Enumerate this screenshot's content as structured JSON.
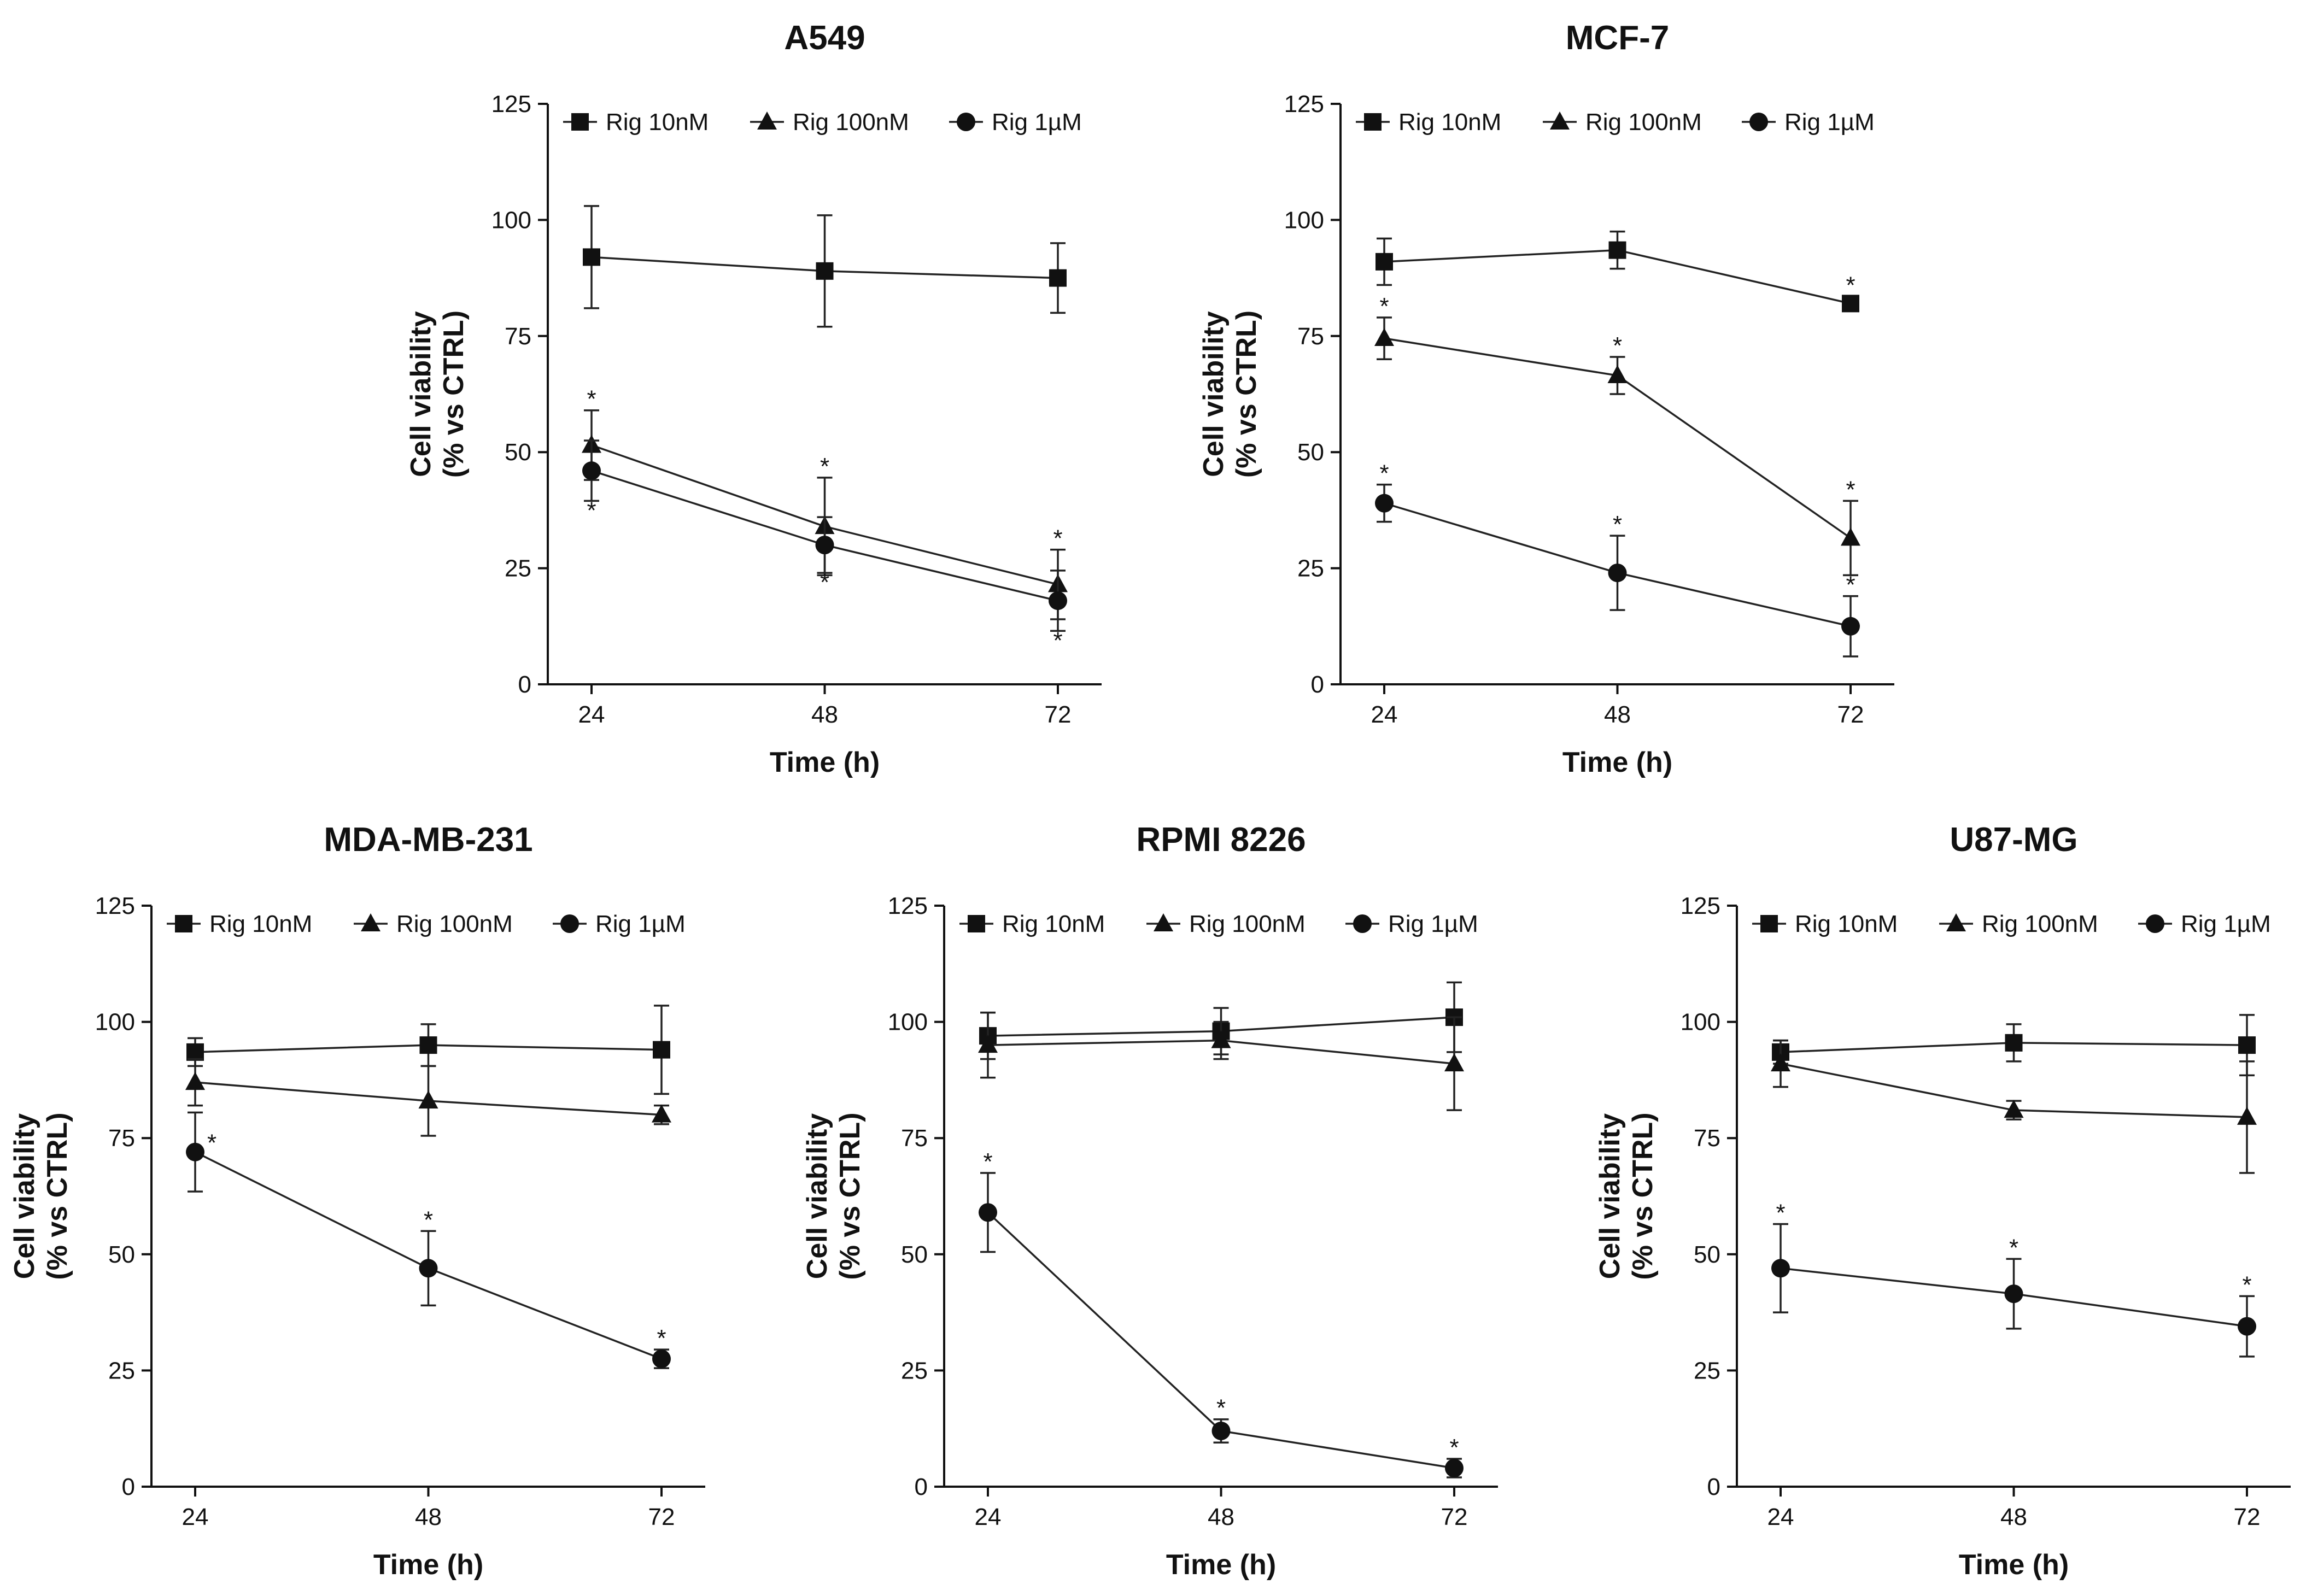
{
  "colors": {
    "ink": "#111111",
    "marker": "#111111",
    "line": "#222222"
  },
  "chart_data": [
    {
      "type": "line",
      "title": "A549",
      "xlabel": "Time (h)",
      "ylabel": [
        "Cell viability",
        "(% vs CTRL)"
      ],
      "ylim": [
        0,
        125
      ],
      "yticks": [
        0,
        25,
        50,
        75,
        100,
        125
      ],
      "x": [
        24,
        48,
        72
      ],
      "legend": "top",
      "series": [
        {
          "name": "Rig 10nM",
          "marker": "square",
          "values": [
            92,
            89,
            87.5
          ],
          "err": [
            11,
            12,
            7.5
          ],
          "stars": [
            [],
            [],
            []
          ]
        },
        {
          "name": "Rig 100nM",
          "marker": "triangle",
          "values": [
            51.5,
            34,
            21.5
          ],
          "err": [
            7.5,
            10.5,
            7.5
          ],
          "stars": [
            [
              "above"
            ],
            [
              "above"
            ],
            [
              "above"
            ]
          ]
        },
        {
          "name": "Rig 1µM",
          "marker": "circle",
          "values": [
            46,
            30,
            18
          ],
          "err": [
            6.5,
            6,
            6.5
          ],
          "stars": [
            [
              "below"
            ],
            [
              "below"
            ],
            [
              "below"
            ]
          ]
        }
      ]
    },
    {
      "type": "line",
      "title": "MCF-7",
      "xlabel": "Time (h)",
      "ylabel": [
        "Cell viability",
        "(% vs CTRL)"
      ],
      "ylim": [
        0,
        125
      ],
      "yticks": [
        0,
        25,
        50,
        75,
        100,
        125
      ],
      "x": [
        24,
        48,
        72
      ],
      "legend": "top",
      "series": [
        {
          "name": "Rig 10nM",
          "marker": "square",
          "values": [
            91,
            93.5,
            82
          ],
          "err": [
            5,
            4,
            1.5
          ],
          "stars": [
            [],
            [],
            [
              "above"
            ]
          ]
        },
        {
          "name": "Rig 100nM",
          "marker": "triangle",
          "values": [
            74.5,
            66.5,
            31.5
          ],
          "err": [
            4.5,
            4,
            8
          ],
          "stars": [
            [
              "above"
            ],
            [
              "above"
            ],
            [
              "above"
            ]
          ]
        },
        {
          "name": "Rig 1µM",
          "marker": "circle",
          "values": [
            39,
            24,
            12.5
          ],
          "err": [
            4,
            8,
            6.5
          ],
          "stars": [
            [
              "above"
            ],
            [
              "above"
            ],
            [
              "above"
            ]
          ]
        }
      ]
    },
    {
      "type": "line",
      "title": "MDA-MB-231",
      "xlabel": "Time (h)",
      "ylabel": [
        "Cell viability",
        "(% vs CTRL)"
      ],
      "ylim": [
        0,
        125
      ],
      "yticks": [
        0,
        25,
        50,
        75,
        100,
        125
      ],
      "x": [
        24,
        48,
        72
      ],
      "legend": "top",
      "series": [
        {
          "name": "Rig 10nM",
          "marker": "square",
          "values": [
            93.5,
            95,
            94
          ],
          "err": [
            3,
            4.5,
            9.5
          ],
          "stars": [
            [],
            [],
            []
          ]
        },
        {
          "name": "Rig 100nM",
          "marker": "triangle",
          "values": [
            87,
            83,
            80
          ],
          "err": [
            5,
            7.5,
            2
          ],
          "stars": [
            [],
            [],
            []
          ]
        },
        {
          "name": "Rig 1µM",
          "marker": "circle",
          "values": [
            72,
            47,
            27.5
          ],
          "err": [
            8.5,
            8,
            2
          ],
          "stars": [
            [
              "right"
            ],
            [
              "above"
            ],
            [
              "above"
            ]
          ]
        }
      ]
    },
    {
      "type": "line",
      "title": "RPMI 8226",
      "xlabel": "Time (h)",
      "ylabel": [
        "Cell viability",
        "(% vs CTRL)"
      ],
      "ylim": [
        0,
        125
      ],
      "yticks": [
        0,
        25,
        50,
        75,
        100,
        125
      ],
      "x": [
        24,
        48,
        72
      ],
      "legend": "top",
      "series": [
        {
          "name": "Rig 10nM",
          "marker": "square",
          "values": [
            97,
            98,
            101
          ],
          "err": [
            5,
            5,
            7.5
          ],
          "stars": [
            [],
            [],
            []
          ]
        },
        {
          "name": "Rig 100nM",
          "marker": "triangle",
          "values": [
            95,
            96,
            91
          ],
          "err": [
            7,
            4,
            10
          ],
          "stars": [
            [],
            [],
            []
          ]
        },
        {
          "name": "Rig 1µM",
          "marker": "circle",
          "values": [
            59,
            12,
            4
          ],
          "err": [
            8.5,
            2.5,
            2
          ],
          "stars": [
            [
              "above"
            ],
            [
              "above"
            ],
            [
              "above"
            ]
          ]
        }
      ]
    },
    {
      "type": "line",
      "title": "U87-MG",
      "xlabel": "Time (h)",
      "ylabel": [
        "Cell viability",
        "(% vs CTRL)"
      ],
      "ylim": [
        0,
        125
      ],
      "yticks": [
        0,
        25,
        50,
        75,
        100,
        125
      ],
      "x": [
        24,
        48,
        72
      ],
      "legend": "top",
      "series": [
        {
          "name": "Rig 10nM",
          "marker": "square",
          "values": [
            93.5,
            95.5,
            95
          ],
          "err": [
            2.5,
            4,
            6.5
          ],
          "stars": [
            [],
            [],
            []
          ]
        },
        {
          "name": "Rig 100nM",
          "marker": "triangle",
          "values": [
            91,
            81,
            79.5
          ],
          "err": [
            5,
            2,
            12
          ],
          "stars": [
            [],
            [],
            []
          ]
        },
        {
          "name": "Rig 1µM",
          "marker": "circle",
          "values": [
            47,
            41.5,
            34.5
          ],
          "err": [
            9.5,
            7.5,
            6.5
          ],
          "stars": [
            [
              "above"
            ],
            [
              "above"
            ],
            [
              "above"
            ]
          ]
        }
      ]
    }
  ]
}
